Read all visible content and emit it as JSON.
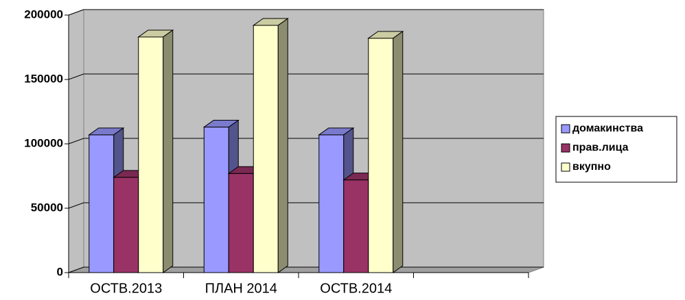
{
  "chart_data": {
    "type": "bar3d",
    "categories": [
      "ОСТВ.2013",
      "ПЛАН 2014",
      "ОСТВ.2014",
      null
    ],
    "series": [
      {
        "name": "домакинства",
        "color": "#9999ff",
        "values": [
          107000,
          113000,
          107000,
          null
        ]
      },
      {
        "name": "прав.лица",
        "color": "#993366",
        "values": [
          74000,
          77000,
          72000,
          null
        ]
      },
      {
        "name": "вкупно",
        "color": "#ffffcc",
        "values": [
          183000,
          192000,
          182000,
          null
        ]
      }
    ],
    "ylim": [
      0,
      200000
    ],
    "yticks": [
      0,
      50000,
      100000,
      150000,
      200000
    ],
    "grid": true,
    "legend": "right"
  }
}
